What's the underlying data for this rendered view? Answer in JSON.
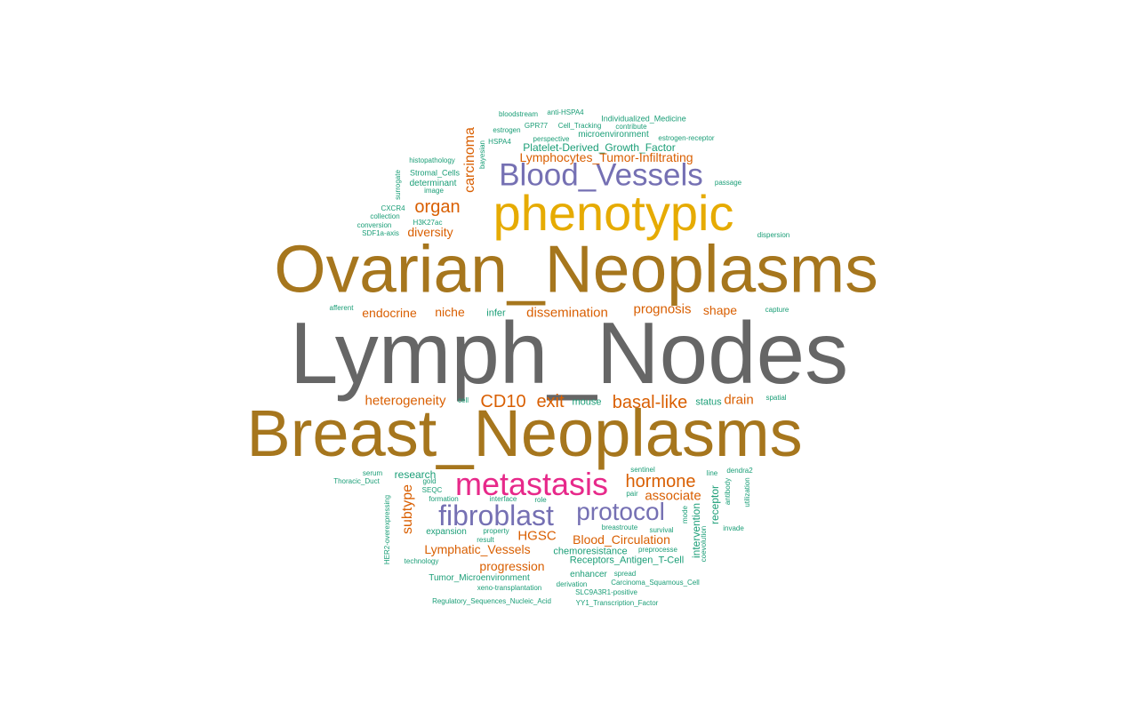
{
  "palette": {
    "teal": "#1b9e77",
    "orange": "#d95f02",
    "purple": "#7570b3",
    "magenta": "#e7298a",
    "gold": "#e6ab02",
    "brown": "#a6761d",
    "gray": "#666666"
  },
  "words": {
    "lymph_nodes": "Lymph_Nodes",
    "ovarian_neoplasms": "Ovarian_Neoplasms",
    "breast_neoplasms": "Breast_Neoplasms",
    "phenotypic": "phenotypic",
    "blood_vessels": "Blood_Vessels",
    "metastasis": "metastasis",
    "fibroblast": "fibroblast",
    "protocol": "protocol",
    "organ": "organ",
    "carcinoma": "carcinoma",
    "lymphocytes": "Lymphocytes_Tumor-Infiltrating",
    "pdgf": "Platelet-Derived_Growth_Factor",
    "diversity": "diversity",
    "endocrine": "endocrine",
    "niche": "niche",
    "dissemination": "dissemination",
    "prognosis": "prognosis",
    "shape": "shape",
    "heterogeneity": "heterogeneity",
    "cd10": "CD10",
    "exit": "exit",
    "basal_like": "basal-like",
    "drain": "drain",
    "hormone": "hormone",
    "associate": "associate",
    "subtype": "subtype",
    "hgsc": "HGSC",
    "blood_circulation": "Blood_Circulation",
    "lymphatic_vessels": "Lymphatic_Vessels",
    "progression": "progression",
    "receptor": "receptor",
    "intervention": "intervention",
    "research": "research",
    "infer": "infer",
    "mouse": "mouse",
    "status": "status",
    "cell": "cell",
    "bloodstream": "bloodstream",
    "anti_hspa4": "anti-HSPA4",
    "individualized_medicine": "Individualized_Medicine",
    "estrogen": "estrogen",
    "gpr77": "GPR77",
    "cell_tracking": "Cell_Tracking",
    "contribute": "contribute",
    "microenvironment": "microenvironment",
    "hspa4": "HSPA4",
    "perspective": "perspective",
    "estrogen_receptor": "estrogen-receptor",
    "bayesian": "bayesian",
    "histopathology": "histopathology",
    "stromal_cells": "Stromal_Cells",
    "surrogate": "surrogate",
    "determinant": "determinant",
    "image": "image",
    "passage": "passage",
    "cxcr4": "CXCR4",
    "h3k27ac": "H3K27ac",
    "collection": "collection",
    "conversion": "conversion",
    "sdf1a_axis": "SDF1a-axis",
    "dispersion": "dispersion",
    "afferent": "afferent",
    "capture": "capture",
    "spatial": "spatial",
    "serum": "serum",
    "thoracic_duct": "Thoracic_Duct",
    "gold": "gold",
    "seqc": "SEQC",
    "formation": "formation",
    "interface": "interface",
    "role": "role",
    "her2": "HER2-overexpressing",
    "sentinel": "sentinel",
    "pair": "pair",
    "line": "line",
    "dendra2": "dendra2",
    "antibody": "antibody",
    "utilization": "utilization",
    "mode": "mode",
    "expansion": "expansion",
    "property": "property",
    "result": "result",
    "breastroute": "breastroute",
    "survival": "survival",
    "coevolution": "coevolution",
    "invade": "invade",
    "preprocesse": "preprocesse",
    "technology": "technology",
    "chemoresistance": "chemoresistance",
    "receptors_antigen": "Receptors_Antigen_T-Cell",
    "enhancer": "enhancer",
    "spread": "spread",
    "tumor_microenvironment": "Tumor_Microenvironment",
    "derivation": "derivation",
    "carcinoma_squamous": "Carcinoma_Squamous_Cell",
    "xeno": "xeno-transplantation",
    "slc9a3r1": "SLC9A3R1-positive",
    "regulatory": "Regulatory_Sequences_Nucleic_Acid",
    "yy1": "YY1_Transcription_Factor"
  }
}
